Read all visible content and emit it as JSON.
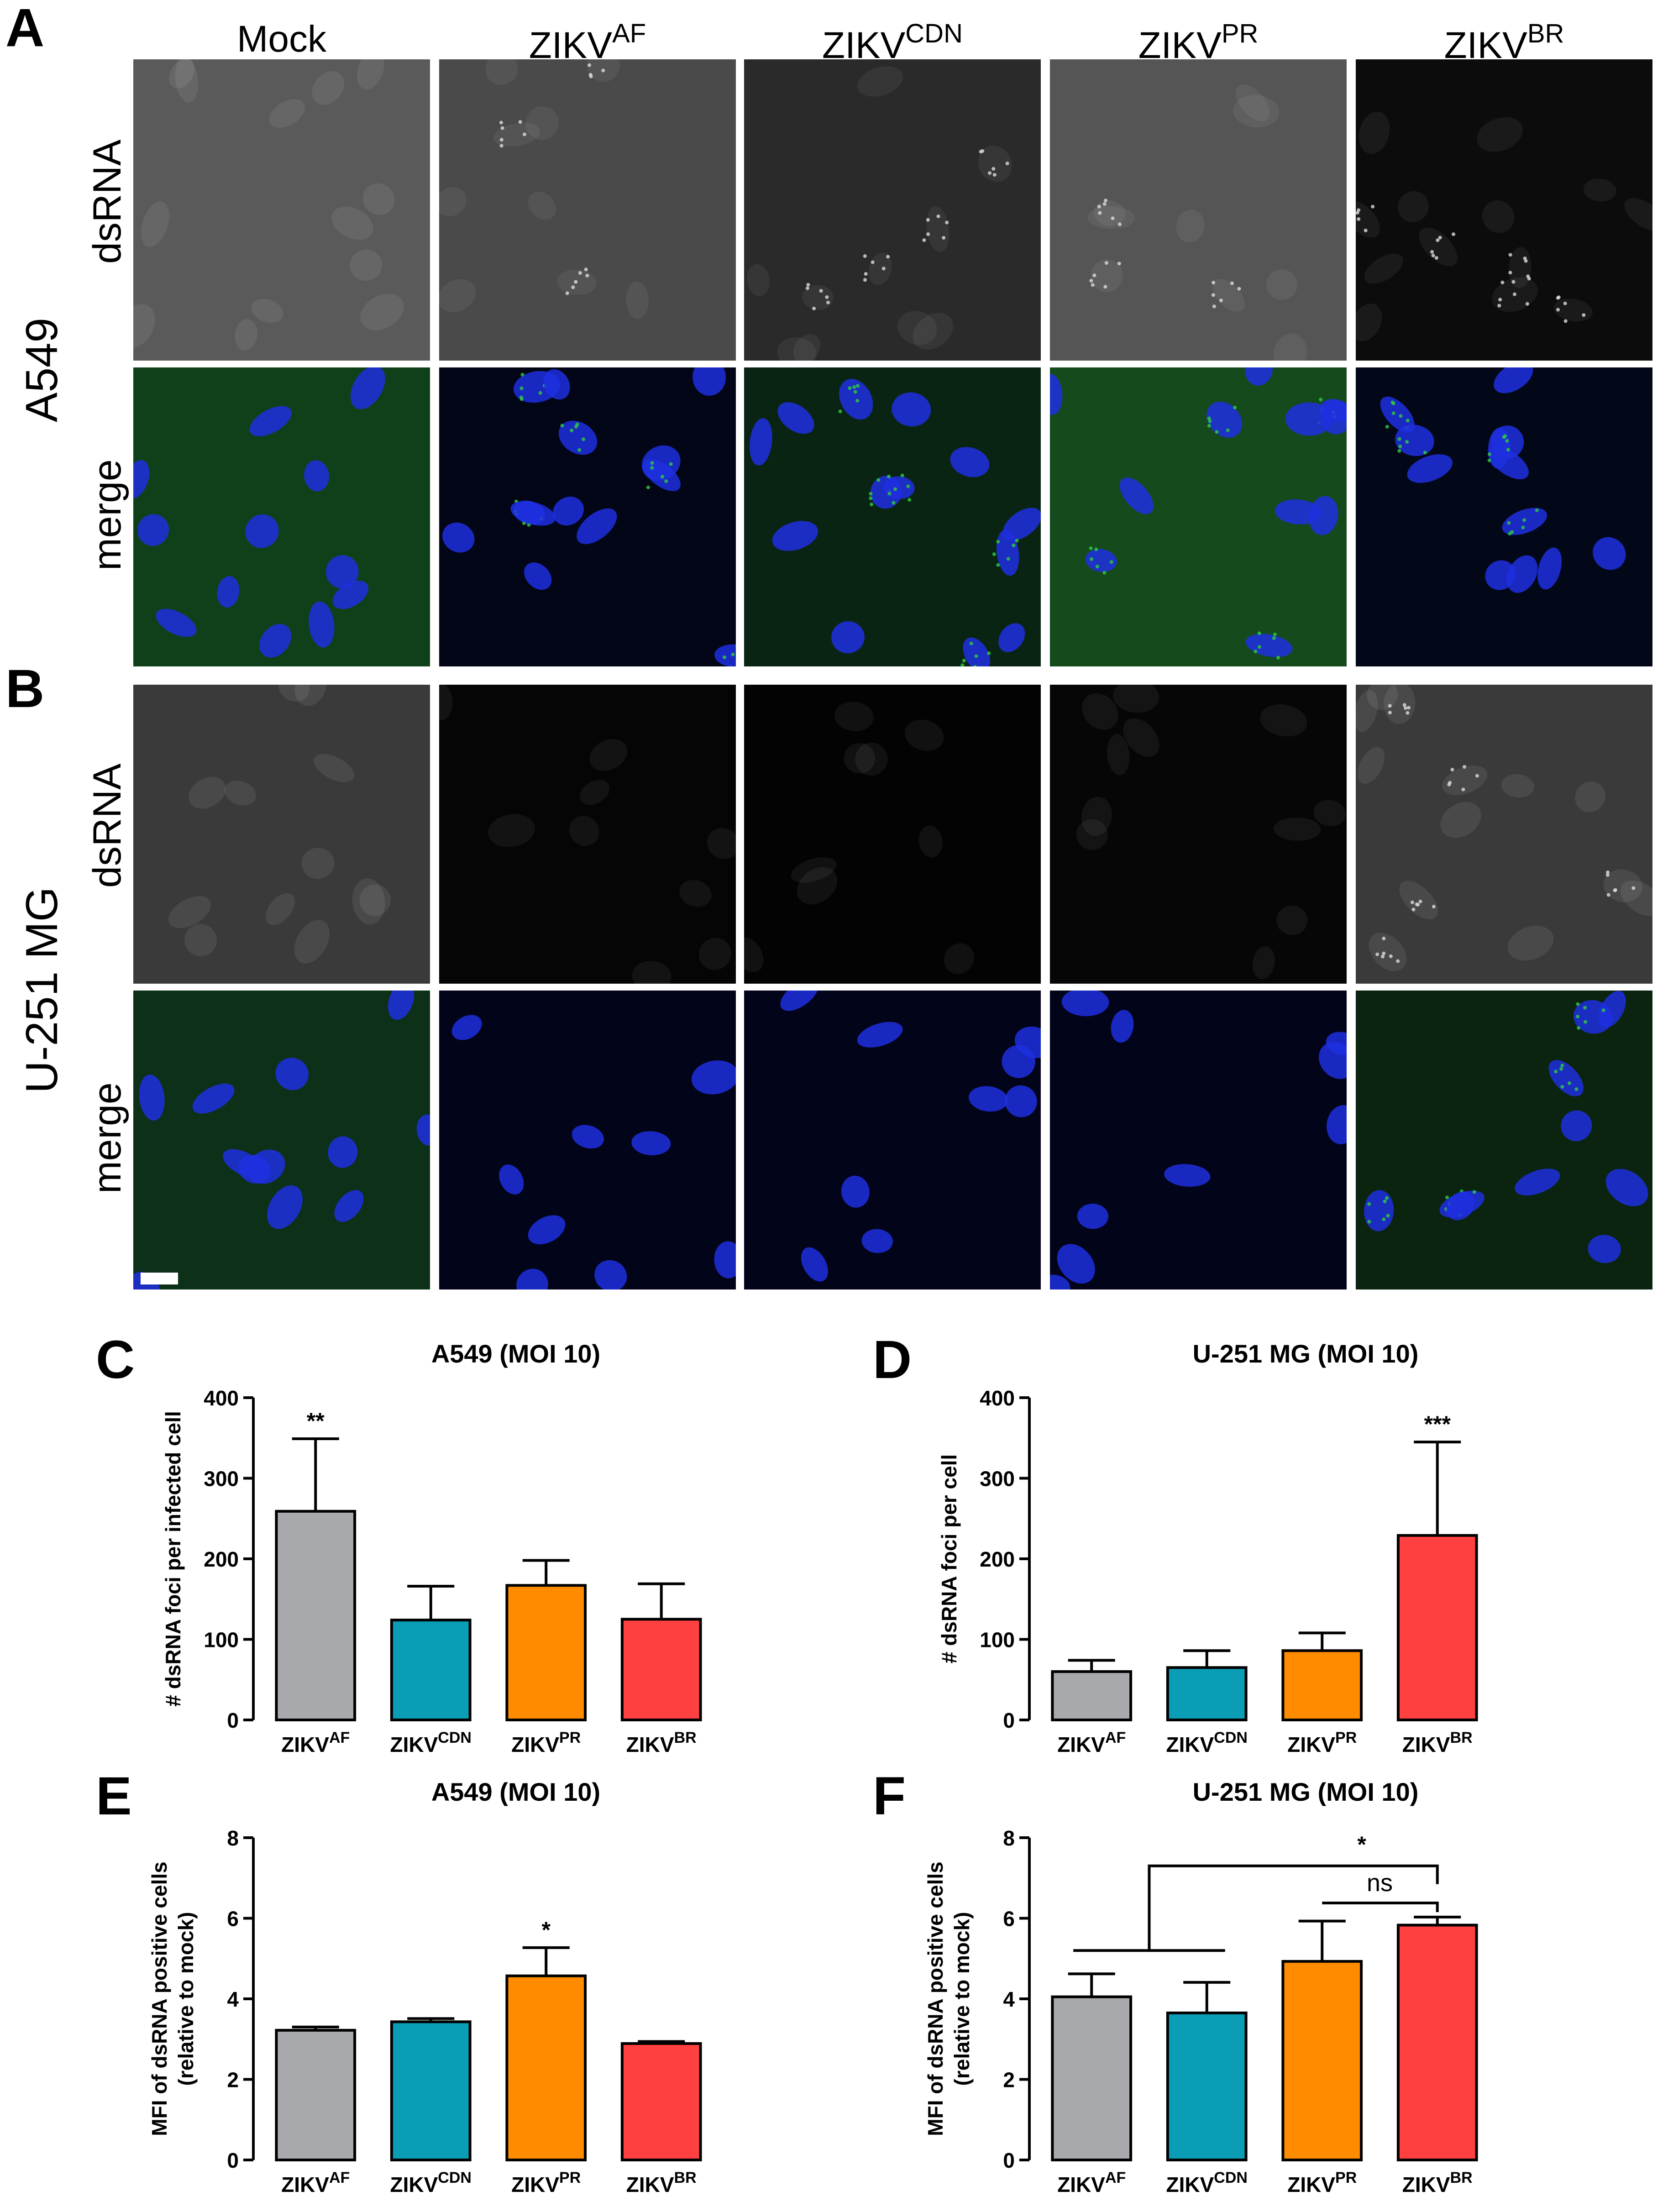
{
  "figure": {
    "panel_labels": [
      "A",
      "B",
      "C",
      "D",
      "E",
      "F"
    ],
    "columns": [
      {
        "base": "Mock",
        "sup": ""
      },
      {
        "base": "ZIKV",
        "sup": "AF"
      },
      {
        "base": "ZIKV",
        "sup": "CDN"
      },
      {
        "base": "ZIKV",
        "sup": "PR"
      },
      {
        "base": "ZIKV",
        "sup": "BR"
      }
    ],
    "cell_lines": [
      "A549",
      "U-251 MG"
    ],
    "row_labels": [
      "dsRNA",
      "merge"
    ],
    "colors": {
      "ZIKV_AF": "#a7a9ac",
      "ZIKV_CDN": "#0b9db5",
      "ZIKV_PR": "#ff8c00",
      "ZIKV_BR": "#ff4040",
      "dsrna_channel": "#dcdcdc",
      "merge_green": "#2ecc40",
      "merge_blue": "#1f2fe0"
    }
  },
  "chart_data": [
    {
      "panel": "C",
      "type": "bar",
      "title": "A549 (MOI 10)",
      "ylabel": "# dsRNA foci per infected cell",
      "categories": [
        {
          "base": "ZIKV",
          "sup": "AF"
        },
        {
          "base": "ZIKV",
          "sup": "CDN"
        },
        {
          "base": "ZIKV",
          "sup": "PR"
        },
        {
          "base": "ZIKV",
          "sup": "BR"
        }
      ],
      "values": [
        259,
        124,
        167,
        125
      ],
      "errors": [
        90,
        42,
        31,
        44
      ],
      "ylim": [
        0,
        400
      ],
      "yticks": [
        "0",
        "100",
        "200",
        "300",
        "400"
      ],
      "significance": [
        {
          "category": 0,
          "label": "**"
        }
      ],
      "colors": [
        "#a7a9ac",
        "#0b9db5",
        "#ff8c00",
        "#ff4040"
      ]
    },
    {
      "panel": "D",
      "type": "bar",
      "title": "U-251 MG (MOI 10)",
      "ylabel": "# dsRNA foci per cell",
      "categories": [
        {
          "base": "ZIKV",
          "sup": "AF"
        },
        {
          "base": "ZIKV",
          "sup": "CDN"
        },
        {
          "base": "ZIKV",
          "sup": "PR"
        },
        {
          "base": "ZIKV",
          "sup": "BR"
        }
      ],
      "values": [
        60,
        65,
        86,
        229
      ],
      "errors": [
        14,
        21,
        22,
        116
      ],
      "ylim": [
        0,
        400
      ],
      "yticks": [
        "0",
        "100",
        "200",
        "300",
        "400"
      ],
      "significance": [
        {
          "category": 3,
          "label": "***"
        }
      ],
      "colors": [
        "#a7a9ac",
        "#0b9db5",
        "#ff8c00",
        "#ff4040"
      ]
    },
    {
      "panel": "E",
      "type": "bar",
      "title": "A549 (MOI 10)",
      "ylabel": "MFI of dsRNA positive cells (relative to mock)",
      "ylabel_lines": [
        "MFI of dsRNA positive cells",
        "(relative to mock)"
      ],
      "categories": [
        {
          "base": "ZIKV",
          "sup": "AF"
        },
        {
          "base": "ZIKV",
          "sup": "CDN"
        },
        {
          "base": "ZIKV",
          "sup": "PR"
        },
        {
          "base": "ZIKV",
          "sup": "BR"
        }
      ],
      "values": [
        3.22,
        3.43,
        4.57,
        2.89
      ],
      "errors": [
        0.08,
        0.08,
        0.7,
        0.05
      ],
      "ylim": [
        0,
        8
      ],
      "yticks": [
        "0",
        "2",
        "4",
        "6",
        "8"
      ],
      "significance": [
        {
          "category": 2,
          "label": "*"
        }
      ],
      "colors": [
        "#a7a9ac",
        "#0b9db5",
        "#ff8c00",
        "#ff4040"
      ]
    },
    {
      "panel": "F",
      "type": "bar",
      "title": "U-251 MG (MOI 10)",
      "ylabel": "MFI of dsRNA positive cells (relative to mock)",
      "ylabel_lines": [
        "MFI of dsRNA positive cells",
        "(relative to mock)"
      ],
      "categories": [
        {
          "base": "ZIKV",
          "sup": "AF"
        },
        {
          "base": "ZIKV",
          "sup": "CDN"
        },
        {
          "base": "ZIKV",
          "sup": "PR"
        },
        {
          "base": "ZIKV",
          "sup": "BR"
        }
      ],
      "values": [
        4.05,
        3.65,
        4.93,
        5.83
      ],
      "errors": [
        0.57,
        0.76,
        1.0,
        0.2
      ],
      "ylim": [
        0,
        8
      ],
      "yticks": [
        "0",
        "2",
        "4",
        "6",
        "8"
      ],
      "brackets": [
        {
          "label": "*",
          "from": [
            0,
            1
          ],
          "to": 3
        },
        {
          "label": "ns",
          "from": [
            2
          ],
          "to": 3
        }
      ],
      "colors": [
        "#a7a9ac",
        "#0b9db5",
        "#ff8c00",
        "#ff4040"
      ]
    }
  ]
}
